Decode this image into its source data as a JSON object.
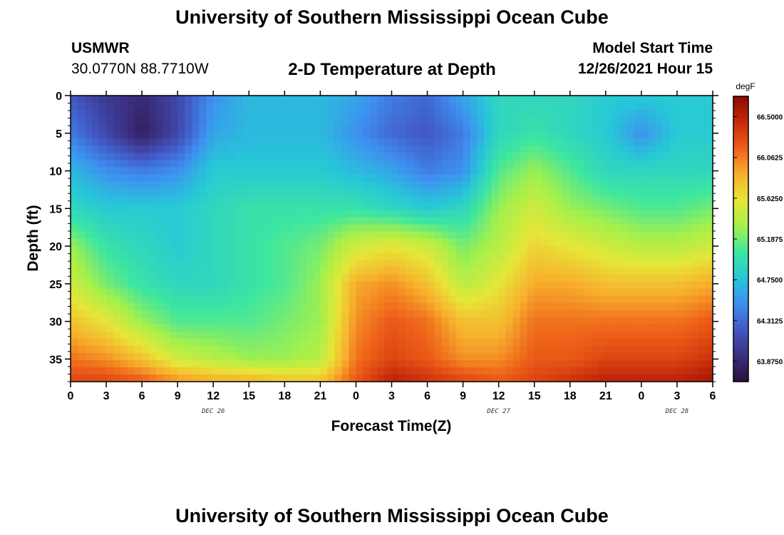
{
  "header": {
    "title": "University of Southern Mississippi Ocean Cube",
    "station_name": "USMWR",
    "station_coords": "30.0770N  88.7710W",
    "subtitle": "2-D Temperature at Depth",
    "model_start_label": "Model Start Time",
    "model_start_time": "12/26/2021 Hour 15"
  },
  "footer": {
    "title_repeat": "University of Southern Mississippi Ocean Cube"
  },
  "chart_data": {
    "type": "heatmap",
    "title": "2-D Temperature at Depth",
    "xlabel": "Forecast Time(Z)",
    "ylabel": "Depth (ft)",
    "x_hours_from_start": [
      0,
      54
    ],
    "x_tick_labels": [
      "0",
      "3",
      "6",
      "9",
      "12",
      "15",
      "18",
      "21",
      "0",
      "3",
      "6",
      "9",
      "12",
      "15",
      "18",
      "21",
      "0",
      "3",
      "6"
    ],
    "day_labels": [
      {
        "label": "DEC 26",
        "hour": 12
      },
      {
        "label": "DEC 27",
        "hour": 36
      },
      {
        "label": "DEC 28",
        "hour": 51
      }
    ],
    "y_ticks": [
      0,
      5,
      10,
      15,
      20,
      25,
      30,
      35
    ],
    "ylim": [
      38,
      0
    ],
    "y_inverted": true,
    "colorbar": {
      "unit": "degF",
      "min": 63.6562,
      "max": 66.7188,
      "tick_labels": [
        "66.5000",
        "66.0625",
        "65.6250",
        "65.1875",
        "64.7500",
        "64.3125",
        "63.8750"
      ],
      "tick_values": [
        66.5,
        66.0625,
        65.625,
        65.1875,
        64.75,
        64.3125,
        63.875
      ],
      "colors": [
        "#2b0f3e",
        "#3b2f80",
        "#4258c4",
        "#3e8ff0",
        "#27c7d8",
        "#3ee6a0",
        "#a6f04a",
        "#e6e638",
        "#f7b02d",
        "#ee6019",
        "#c52a0a",
        "#8a0a02"
      ]
    },
    "temperature_grid": {
      "x_hours": [
        0,
        3,
        6,
        9,
        12,
        15,
        18,
        21,
        24,
        27,
        30,
        33,
        36,
        39,
        42,
        45,
        48,
        51,
        54
      ],
      "depth_ft": [
        0,
        5,
        10,
        15,
        20,
        25,
        30,
        35,
        38
      ],
      "values_degF": [
        [
          64.2,
          64.0,
          63.9,
          64.1,
          64.5,
          64.7,
          64.7,
          64.7,
          64.6,
          64.4,
          64.3,
          64.6,
          64.9,
          64.9,
          64.9,
          64.8,
          64.8,
          64.8,
          64.8
        ],
        [
          64.4,
          64.1,
          63.8,
          64.1,
          64.6,
          64.7,
          64.7,
          64.7,
          64.5,
          64.3,
          64.2,
          64.4,
          64.9,
          65.0,
          64.9,
          64.8,
          64.5,
          64.8,
          64.8
        ],
        [
          64.7,
          64.5,
          64.4,
          64.5,
          64.8,
          64.8,
          64.8,
          64.8,
          64.7,
          64.6,
          64.4,
          64.5,
          65.1,
          65.3,
          65.1,
          64.9,
          64.9,
          64.9,
          64.9
        ],
        [
          64.9,
          64.8,
          64.8,
          64.8,
          64.9,
          65.0,
          65.0,
          65.0,
          65.0,
          64.9,
          64.8,
          64.9,
          65.3,
          65.5,
          65.3,
          65.2,
          65.1,
          65.1,
          65.2
        ],
        [
          65.3,
          65.0,
          64.9,
          64.8,
          64.9,
          65.0,
          65.1,
          65.2,
          65.5,
          65.6,
          65.5,
          65.2,
          65.4,
          65.7,
          65.6,
          65.5,
          65.4,
          65.4,
          65.5
        ],
        [
          65.5,
          65.2,
          65.0,
          64.9,
          64.9,
          65.0,
          65.1,
          65.3,
          65.9,
          66.0,
          65.8,
          65.4,
          65.6,
          65.9,
          65.9,
          65.8,
          65.8,
          65.8,
          65.9
        ],
        [
          65.8,
          65.6,
          65.3,
          65.1,
          65.1,
          65.1,
          65.2,
          65.3,
          66.0,
          66.2,
          66.1,
          65.8,
          65.8,
          66.1,
          66.1,
          66.1,
          66.1,
          66.1,
          66.2
        ],
        [
          66.1,
          66.0,
          65.8,
          65.5,
          65.4,
          65.3,
          65.3,
          65.4,
          66.1,
          66.3,
          66.2,
          66.0,
          66.0,
          66.2,
          66.2,
          66.3,
          66.3,
          66.3,
          66.4
        ],
        [
          66.3,
          66.3,
          66.2,
          66.0,
          65.9,
          65.9,
          65.8,
          65.8,
          66.2,
          66.5,
          66.4,
          66.3,
          66.2,
          66.3,
          66.4,
          66.5,
          66.5,
          66.5,
          66.6
        ]
      ]
    }
  }
}
